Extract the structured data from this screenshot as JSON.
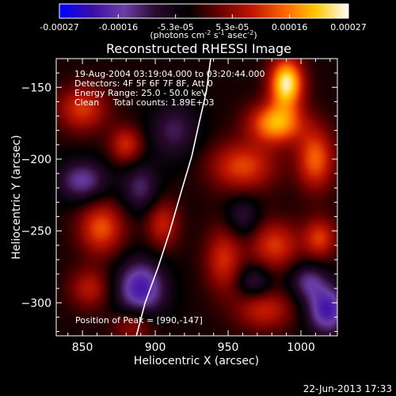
{
  "chart_data": {
    "type": "heatmap",
    "title": "Reconstructed RHESSI Image",
    "xlabel": "Heliocentric X (arcsec)",
    "ylabel": "Heliocentric Y (arcsec)",
    "x_ticks": [
      850,
      900,
      950,
      1000
    ],
    "y_ticks": [
      -150,
      -200,
      -250,
      -300
    ],
    "xlim": [
      832,
      1025
    ],
    "ylim": [
      -323,
      -130
    ],
    "colorbar": {
      "min": -0.00027,
      "max": 0.00027,
      "ticks": [
        "-0.00027",
        "-0.00016",
        "-5.3e-05",
        "5.3e-05",
        "0.00016",
        "0.00027"
      ],
      "tick_values": [
        -0.00027,
        -0.00016,
        -5.3e-05,
        5.3e-05,
        0.00016,
        0.00027
      ],
      "units_label": {
        "prefix": "(photons cm",
        "exp1": "-2",
        "mid1": " s",
        "exp2": "-1",
        "mid2": " asec",
        "exp3": "-2",
        "suffix": ")"
      },
      "colors": [
        "#0000ff",
        "#3a0da8",
        "#6b3ea6",
        "#2a0a2f",
        "#000000",
        "#6a0000",
        "#c01600",
        "#ff6400",
        "#ffc800",
        "#ffffff"
      ]
    },
    "annotations": [
      "19-Aug-2004 03:19:04.000 to 03:20:44.000",
      "Detectors: 4F 5F 6F 7F 8F, Att 0",
      "Energy Range: 25.0 - 50.0 keV",
      "Clean     Total counts: 1.89E+03"
    ],
    "peak_label": "Position of Peak = [990,-147]",
    "peak_position": [
      990,
      -147
    ],
    "limb_points": [
      [
        887,
        -323
      ],
      [
        893,
        -300
      ],
      [
        902,
        -275
      ],
      [
        910,
        -250
      ],
      [
        918,
        -222
      ],
      [
        925,
        -198
      ],
      [
        930,
        -175
      ],
      [
        935,
        -153
      ],
      [
        938,
        -130
      ]
    ],
    "sources": [
      {
        "x": 990,
        "y": -147,
        "value": 0.00027,
        "sx": 8,
        "sy": 12
      },
      {
        "x": 983,
        "y": -175,
        "value": 0.00021,
        "sx": 13,
        "sy": 10
      },
      {
        "x": 960,
        "y": -205,
        "value": 0.00014,
        "sx": 16,
        "sy": 12
      },
      {
        "x": 1010,
        "y": -200,
        "value": 0.00016,
        "sx": 9,
        "sy": 15
      },
      {
        "x": 982,
        "y": -260,
        "value": 0.00013,
        "sx": 12,
        "sy": 12
      },
      {
        "x": 1013,
        "y": -255,
        "value": 0.00013,
        "sx": 8,
        "sy": 10
      },
      {
        "x": 947,
        "y": -270,
        "value": 0.00012,
        "sx": 9,
        "sy": 16
      },
      {
        "x": 975,
        "y": -305,
        "value": 0.00011,
        "sx": 14,
        "sy": 10
      },
      {
        "x": 863,
        "y": -248,
        "value": 0.00015,
        "sx": 11,
        "sy": 13
      },
      {
        "x": 850,
        "y": -165,
        "value": 0.00013,
        "sx": 12,
        "sy": 11
      },
      {
        "x": 880,
        "y": -190,
        "value": 0.00012,
        "sx": 8,
        "sy": 9
      },
      {
        "x": 855,
        "y": -290,
        "value": 0.0001,
        "sx": 10,
        "sy": 10
      },
      {
        "x": 905,
        "y": -245,
        "value": 0.00011,
        "sx": 8,
        "sy": 12
      },
      {
        "x": 885,
        "y": -315,
        "value": 9e-05,
        "sx": 10,
        "sy": 8
      },
      {
        "x": 913,
        "y": -180,
        "value": -9e-05,
        "sx": 12,
        "sy": 14
      },
      {
        "x": 890,
        "y": -220,
        "value": -0.0001,
        "sx": 9,
        "sy": 12
      },
      {
        "x": 890,
        "y": -290,
        "value": -0.00018,
        "sx": 12,
        "sy": 14
      },
      {
        "x": 850,
        "y": -215,
        "value": -0.00013,
        "sx": 12,
        "sy": 10
      },
      {
        "x": 1018,
        "y": -305,
        "value": -0.00018,
        "sx": 10,
        "sy": 12
      },
      {
        "x": 1005,
        "y": -285,
        "value": -0.00011,
        "sx": 9,
        "sy": 9
      },
      {
        "x": 968,
        "y": -285,
        "value": -9e-05,
        "sx": 8,
        "sy": 8
      },
      {
        "x": 960,
        "y": -240,
        "value": -8e-05,
        "sx": 8,
        "sy": 10
      }
    ]
  },
  "footer": {
    "date": "22-Jun-2013 17:33"
  },
  "theme": {
    "background": "#000000",
    "foreground": "#ffffff"
  }
}
